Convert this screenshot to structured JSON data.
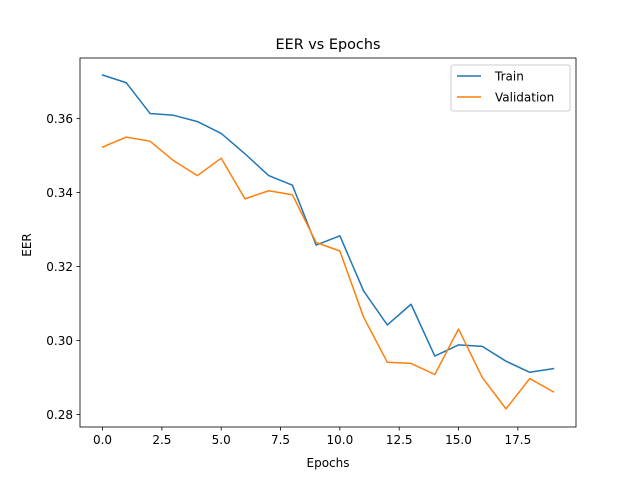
{
  "chart_data": {
    "type": "line",
    "title": "EER vs Epochs",
    "xlabel": "Epochs",
    "ylabel": "EER",
    "xlim": [
      -0.95,
      19.95
    ],
    "ylim": [
      0.2766,
      0.3764
    ],
    "x_ticks": [
      0.0,
      2.5,
      5.0,
      7.5,
      10.0,
      12.5,
      15.0,
      17.5
    ],
    "x_tick_labels": [
      "0.0",
      "2.5",
      "5.0",
      "7.5",
      "10.0",
      "12.5",
      "15.0",
      "17.5"
    ],
    "y_ticks": [
      0.28,
      0.3,
      0.32,
      0.34,
      0.36
    ],
    "y_tick_labels": [
      "0.28",
      "0.30",
      "0.32",
      "0.34",
      "0.36"
    ],
    "legend_position": "top-right",
    "grid": false,
    "x": [
      0,
      1,
      2,
      3,
      4,
      5,
      6,
      7,
      8,
      9,
      10,
      11,
      12,
      13,
      14,
      15,
      16,
      17,
      18,
      19
    ],
    "series": [
      {
        "name": "Train",
        "color": "#1f77b4",
        "values": [
          0.3718,
          0.3697,
          0.3614,
          0.3609,
          0.3592,
          0.356,
          0.3505,
          0.3446,
          0.342,
          0.3258,
          0.3283,
          0.3134,
          0.3042,
          0.3098,
          0.2958,
          0.2988,
          0.2984,
          0.2944,
          0.2914,
          0.2924
        ]
      },
      {
        "name": "Validation",
        "color": "#ff7f0e",
        "values": [
          0.3523,
          0.355,
          0.3539,
          0.3486,
          0.3446,
          0.3493,
          0.3383,
          0.3405,
          0.3394,
          0.3265,
          0.3242,
          0.3063,
          0.2941,
          0.2938,
          0.2908,
          0.3031,
          0.29,
          0.2815,
          0.2897,
          0.2861
        ]
      }
    ]
  }
}
